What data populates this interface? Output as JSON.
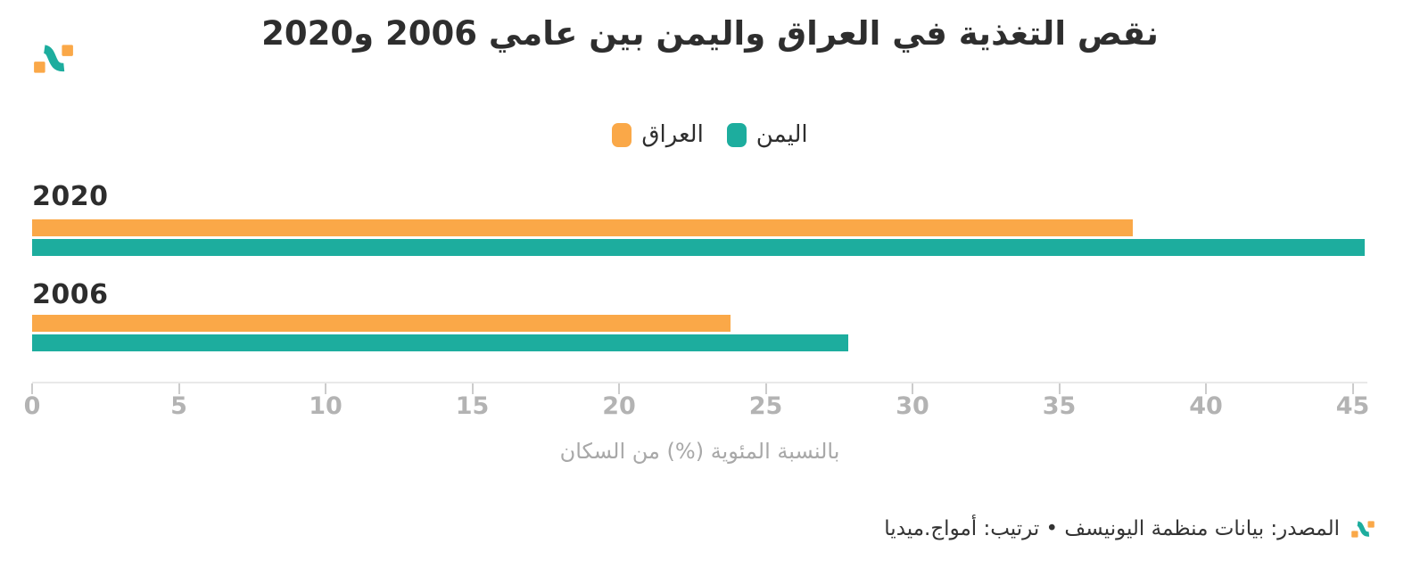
{
  "header": {
    "title": "نقص التغذية في العراق واليمن بين عامي 2006 و2020",
    "logo_name": "amwaj-media-logo"
  },
  "legend": {
    "items": [
      {
        "label": "العراق",
        "color": "#FAA848"
      },
      {
        "label": "اليمن",
        "color": "#1DAD9E"
      }
    ]
  },
  "chart_data": {
    "type": "bar",
    "orientation": "horizontal",
    "title": "نقص التغذية في العراق واليمن بين عامي 2006 و2020",
    "categories": [
      "2020",
      "2006"
    ],
    "series": [
      {
        "name": "العراق",
        "color": "#FAA848",
        "values": [
          37.5,
          23.8
        ]
      },
      {
        "name": "اليمن",
        "color": "#1DAD9E",
        "values": [
          45.4,
          27.8
        ]
      }
    ],
    "xlabel": "بالنسبة المئوية (%) من السكان",
    "xlim": [
      0,
      45.5
    ],
    "xticks": [
      0,
      5,
      10,
      15,
      20,
      25,
      30,
      35,
      40,
      45
    ],
    "legend_position": "top-center",
    "grid": false
  },
  "axis": {
    "caption": "بالنسبة المئوية (%) من السكان"
  },
  "footer": {
    "source_text": "المصدر: بيانات منظمة اليونيسف • ترتيب: أمواج.ميديا"
  },
  "colors": {
    "iraq_orange": "#FAA848",
    "yemen_teal": "#1DAD9E",
    "text_dark": "#2e2e2e",
    "tick_gray": "#b3b3b3",
    "axis_line_gray": "#e9e9e9"
  }
}
